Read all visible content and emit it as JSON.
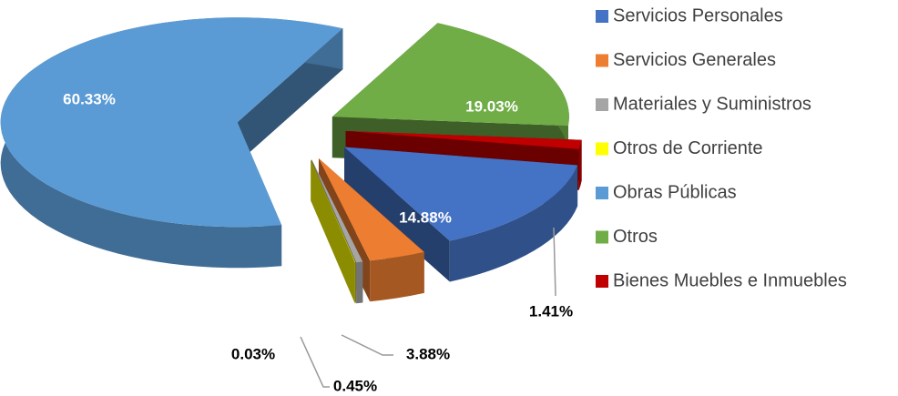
{
  "chart_data": {
    "type": "pie3d",
    "categories": [
      "Servicios Personales",
      "Servicios Generales",
      "Materiales y Suministros",
      "Otros de Corriente",
      "Obras Públicas",
      "Otros",
      "Bienes Muebles e Inmuebles"
    ],
    "values": [
      14.88,
      3.88,
      0.45,
      0.03,
      60.33,
      19.03,
      1.41
    ],
    "value_labels": [
      "14.88%",
      "3.88%",
      "0.45%",
      "0.03%",
      "60.33%",
      "19.03%",
      "1.41%"
    ],
    "colors": [
      "#4472c4",
      "#ed7d31",
      "#a5a5a5",
      "#ffff00",
      "#5b9bd5",
      "#70ad47",
      "#c00000"
    ],
    "legend": "right"
  }
}
